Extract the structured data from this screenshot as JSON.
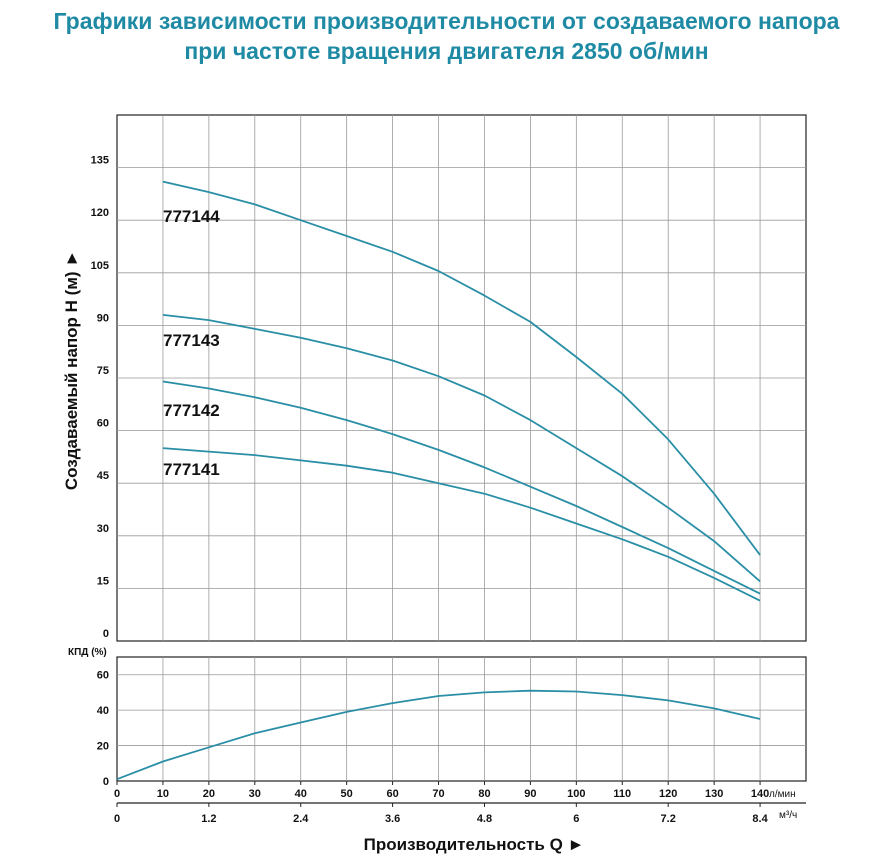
{
  "title_line1": "Графики зависимости производительности от создаваемого напора",
  "title_line2": "при частоте вращения двигателя 2850 об/мин",
  "colors": {
    "title": "#1f8aa4",
    "curve": "#2a8fa6",
    "grid": "#9a9a9a",
    "axis": "#222222"
  },
  "chart_data": [
    {
      "type": "line",
      "ylabel": "Создаваемый напор H (м) ►",
      "ylim": [
        0,
        135
      ],
      "yticks": [
        0,
        15,
        30,
        45,
        60,
        75,
        90,
        105,
        120,
        135
      ],
      "xlim": [
        0,
        150
      ],
      "grid": true,
      "series": [
        {
          "name": "777144",
          "x": [
            10,
            20,
            30,
            40,
            50,
            60,
            70,
            80,
            90,
            100,
            110,
            120,
            130,
            140
          ],
          "values": [
            131,
            128,
            124.5,
            120,
            115.5,
            111,
            105.5,
            98.5,
            91,
            81,
            70.5,
            57.5,
            42,
            24.5
          ]
        },
        {
          "name": "777143",
          "x": [
            10,
            20,
            30,
            40,
            50,
            60,
            70,
            80,
            90,
            100,
            110,
            120,
            130,
            140
          ],
          "values": [
            93,
            91.5,
            89,
            86.5,
            83.5,
            80,
            75.5,
            70,
            63,
            55,
            47,
            38,
            28.5,
            17
          ]
        },
        {
          "name": "777142",
          "x": [
            10,
            20,
            30,
            40,
            50,
            60,
            70,
            80,
            90,
            100,
            110,
            120,
            130,
            140
          ],
          "values": [
            74,
            72,
            69.5,
            66.5,
            63,
            59,
            54.5,
            49.5,
            44,
            38.5,
            32.5,
            26.5,
            20,
            13.5
          ]
        },
        {
          "name": "777141",
          "x": [
            10,
            20,
            30,
            40,
            50,
            60,
            70,
            80,
            90,
            100,
            110,
            120,
            130,
            140
          ],
          "values": [
            55,
            54,
            53,
            51.5,
            50,
            48,
            45,
            42,
            38,
            33.5,
            29,
            24,
            18,
            11.5
          ]
        }
      ]
    },
    {
      "type": "line",
      "ylabel": "КПД (%)",
      "ylim": [
        0,
        70
      ],
      "yticks": [
        0,
        20,
        40,
        60
      ],
      "xlim": [
        0,
        150
      ],
      "grid": true,
      "series": [
        {
          "x": [
            0,
            10,
            20,
            30,
            40,
            50,
            60,
            70,
            80,
            90,
            100,
            110,
            120,
            130,
            140
          ],
          "values": [
            1,
            11,
            19,
            27,
            33,
            39,
            44,
            48,
            50,
            51,
            50.5,
            48.5,
            45.5,
            41,
            35
          ]
        }
      ]
    }
  ],
  "x_axis": {
    "ticks_lmin": [
      "0",
      "10",
      "20",
      "30",
      "40",
      "50",
      "60",
      "70",
      "80",
      "90",
      "100",
      "110",
      "120",
      "130",
      "140"
    ],
    "unit_lmin": "л/мин",
    "ticks_m3h": [
      "0",
      "1.2",
      "2.4",
      "3.6",
      "4.8",
      "6",
      "7.2",
      "8.4"
    ],
    "unit_m3h": "м³/ч",
    "label": "Производительность Q ►"
  }
}
